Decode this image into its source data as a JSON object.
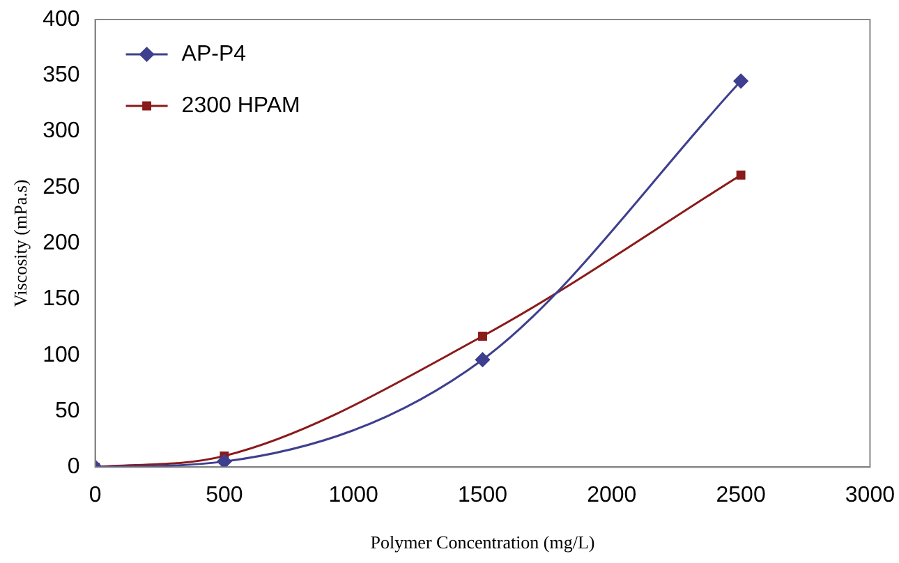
{
  "chart_data": {
    "type": "line",
    "xlabel": "Polymer Concentration (mg/L)",
    "ylabel": "Viscosity (mPa.s)",
    "xlim": [
      0,
      3000
    ],
    "xticks": [
      0,
      500,
      1000,
      1500,
      2000,
      2500,
      3000
    ],
    "ylim": [
      0,
      400
    ],
    "yticks": [
      0,
      50,
      100,
      150,
      200,
      250,
      300,
      350,
      400
    ],
    "grid": false,
    "legend": "top left",
    "series": [
      {
        "name": "AP-P4",
        "color": "#3f3f8f",
        "marker": "diamond",
        "x": [
          0,
          500,
          1500,
          2500
        ],
        "values": [
          0,
          5,
          96,
          345
        ]
      },
      {
        "name": "2300 HPAM",
        "color": "#8b1a1a",
        "marker": "square",
        "x": [
          0,
          500,
          1500,
          2500
        ],
        "values": [
          0,
          10,
          117,
          261
        ]
      }
    ]
  }
}
